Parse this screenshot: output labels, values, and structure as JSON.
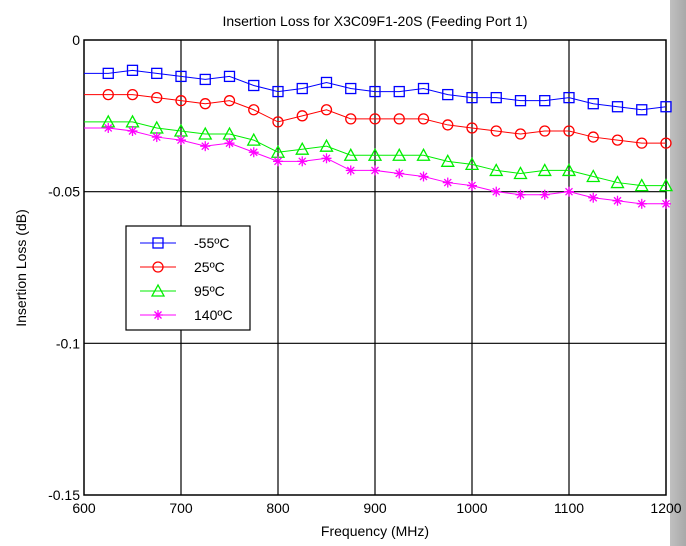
{
  "chart_data": {
    "type": "line",
    "title": "Insertion Loss for X3C09F1-20S (Feeding Port 1)",
    "xlabel": "Frequency (MHz)",
    "ylabel": "Insertion Loss (dB)",
    "xlim": [
      600,
      1200
    ],
    "ylim": [
      -0.15,
      0
    ],
    "xticks": [
      600,
      700,
      800,
      900,
      1000,
      1100,
      1200
    ],
    "yticks": [
      0,
      -0.05,
      -0.1,
      -0.15
    ],
    "xtick_labels": [
      "600",
      "700",
      "800",
      "900",
      "1000",
      "1100",
      "1200"
    ],
    "ytick_labels": [
      "0",
      "-0.05",
      "-0.1",
      "-0.15"
    ],
    "grid": true,
    "legend_position": "left",
    "x": [
      625,
      650,
      675,
      700,
      725,
      750,
      775,
      800,
      825,
      850,
      875,
      900,
      925,
      950,
      975,
      1000,
      1025,
      1050,
      1075,
      1100,
      1125,
      1150,
      1175,
      1200
    ],
    "series": [
      {
        "name": "-55ºC",
        "color": "#0000ff",
        "marker": "square",
        "values": [
          -0.011,
          -0.01,
          -0.011,
          -0.012,
          -0.013,
          -0.012,
          -0.015,
          -0.017,
          -0.016,
          -0.014,
          -0.016,
          -0.017,
          -0.017,
          -0.016,
          -0.018,
          -0.019,
          -0.019,
          -0.02,
          -0.02,
          -0.019,
          -0.021,
          -0.022,
          -0.023,
          -0.022
        ]
      },
      {
        "name": "25ºC",
        "color": "#ff0000",
        "marker": "circle",
        "values": [
          -0.018,
          -0.018,
          -0.019,
          -0.02,
          -0.021,
          -0.02,
          -0.023,
          -0.027,
          -0.025,
          -0.023,
          -0.026,
          -0.026,
          -0.026,
          -0.026,
          -0.028,
          -0.029,
          -0.03,
          -0.031,
          -0.03,
          -0.03,
          -0.032,
          -0.033,
          -0.034,
          -0.034
        ]
      },
      {
        "name": "95ºC",
        "color": "#00ee00",
        "marker": "triangle",
        "values": [
          -0.027,
          -0.027,
          -0.029,
          -0.03,
          -0.031,
          -0.031,
          -0.033,
          -0.037,
          -0.036,
          -0.035,
          -0.038,
          -0.038,
          -0.038,
          -0.038,
          -0.04,
          -0.041,
          -0.043,
          -0.044,
          -0.043,
          -0.043,
          -0.045,
          -0.047,
          -0.048,
          -0.048
        ]
      },
      {
        "name": "140ºC",
        "color": "#ff00ff",
        "marker": "asterisk",
        "values": [
          -0.029,
          -0.03,
          -0.032,
          -0.033,
          -0.035,
          -0.034,
          -0.037,
          -0.04,
          -0.04,
          -0.039,
          -0.043,
          -0.043,
          -0.044,
          -0.045,
          -0.047,
          -0.048,
          -0.05,
          -0.051,
          -0.051,
          -0.05,
          -0.052,
          -0.053,
          -0.054,
          -0.054
        ]
      }
    ]
  }
}
